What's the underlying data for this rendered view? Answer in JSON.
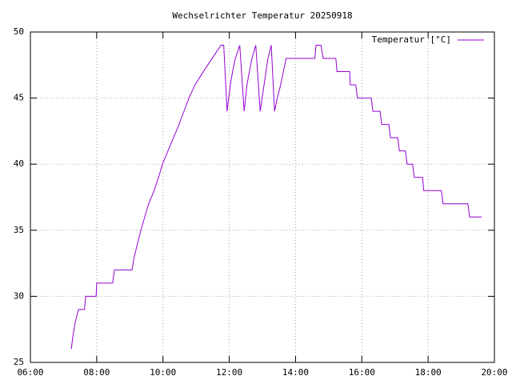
{
  "chart_data": {
    "type": "line",
    "title": "Wechselrichter Temperatur 20250918",
    "x": [
      "07:14",
      "07:17",
      "07:21",
      "07:27",
      "07:38",
      "07:40",
      "07:59",
      "08:00",
      "08:29",
      "08:32",
      "09:04",
      "09:08",
      "09:14",
      "09:20",
      "09:27",
      "09:34",
      "09:44",
      "09:52",
      "09:59",
      "10:09",
      "10:19",
      "10:29",
      "10:38",
      "10:47",
      "10:58",
      "11:13",
      "11:29",
      "11:45",
      "11:50",
      "11:56",
      "11:59",
      "12:02",
      "12:06",
      "12:11",
      "12:19",
      "12:27",
      "12:32",
      "12:41",
      "12:48",
      "12:56",
      "13:03",
      "13:10",
      "13:16",
      "13:22",
      "13:27",
      "13:33",
      "13:38",
      "13:43",
      "14:35",
      "14:37",
      "14:46",
      "14:50",
      "15:13",
      "15:15",
      "15:38",
      "15:39",
      "15:49",
      "15:52",
      "16:17",
      "16:20",
      "16:33",
      "16:36",
      "16:49",
      "16:52",
      "17:05",
      "17:08",
      "17:19",
      "17:22",
      "17:32",
      "17:35",
      "17:50",
      "17:52",
      "18:24",
      "18:27",
      "19:12",
      "19:15",
      "19:37"
    ],
    "series": [
      {
        "name": "Temperatur [°C]",
        "color": "#9400d3",
        "values": [
          26,
          27,
          28,
          29,
          29,
          30,
          30,
          31,
          31,
          32,
          32,
          33,
          34,
          35,
          36,
          37,
          38,
          39,
          40,
          41,
          42,
          43,
          44,
          45,
          46,
          47,
          48,
          49,
          49,
          44,
          45,
          46,
          47,
          48,
          49,
          44,
          46,
          48,
          49,
          44,
          46,
          48,
          49,
          44,
          45,
          46,
          47,
          48,
          48,
          49,
          49,
          48,
          48,
          47,
          47,
          46,
          46,
          45,
          45,
          44,
          44,
          43,
          43,
          42,
          42,
          41,
          41,
          40,
          40,
          39,
          39,
          38,
          38,
          37,
          37,
          36,
          36
        ]
      }
    ],
    "xlim": [
      "06:00",
      "20:00"
    ],
    "xticks": [
      "06:00",
      "08:00",
      "10:00",
      "12:00",
      "14:00",
      "16:00",
      "18:00",
      "20:00"
    ],
    "ylim": [
      25,
      50
    ],
    "yticks": [
      25,
      30,
      35,
      40,
      45,
      50
    ],
    "grid": true,
    "legend": "top-right"
  }
}
